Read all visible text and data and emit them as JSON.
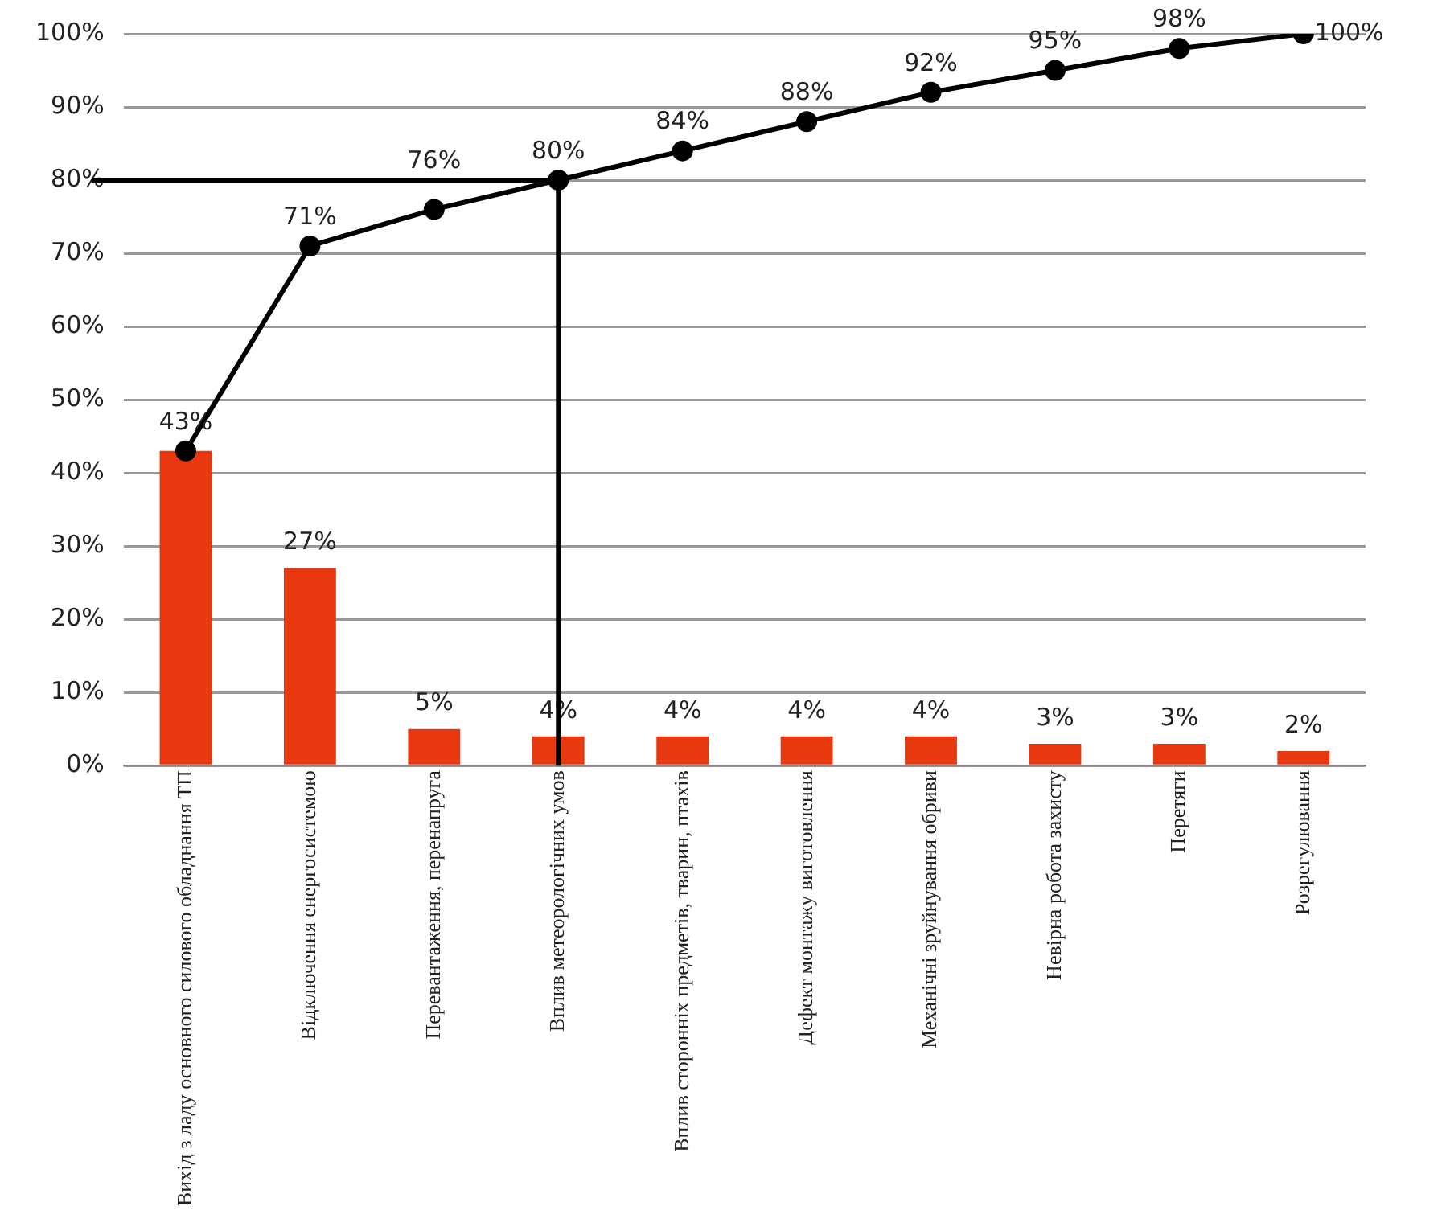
{
  "chart_data": {
    "type": "bar",
    "categories": [
      "Вихід з ладу основного силового обладнання ТП",
      "Відключення енергосистемою",
      "Перевантаження, перенапруга",
      "Вплив метеорологічних умов",
      "Вплив сторонніх предметів, тварин, птахів",
      "Дефект монтажу виготовлення",
      "Механічні зруйнування обриви",
      "Невірна робота захисту",
      "Перетяги",
      "Розрегулювання"
    ],
    "series": [
      {
        "type": "bar",
        "color": "#e8380f",
        "values": [
          43,
          27,
          5,
          4,
          4,
          4,
          4,
          3,
          3,
          2
        ],
        "value_labels": [
          null,
          "27%",
          "5%",
          "4%",
          "4%",
          "4%",
          "4%",
          "3%",
          "3%",
          "2%"
        ]
      },
      {
        "type": "line",
        "color": "#000000",
        "values": [
          43,
          71,
          76,
          80,
          84,
          88,
          92,
          95,
          98,
          100
        ],
        "value_labels": [
          "43%",
          "71%",
          "76%",
          "80%",
          "84%",
          "88%",
          "92%",
          "95%",
          "98%",
          "100%"
        ]
      }
    ],
    "ylim": [
      0,
      100
    ],
    "yticks": [
      {
        "value": 0,
        "label": "0%"
      },
      {
        "value": 10,
        "label": "10%"
      },
      {
        "value": 20,
        "label": "20%"
      },
      {
        "value": 30,
        "label": "30%"
      },
      {
        "value": 40,
        "label": "40%"
      },
      {
        "value": 50,
        "label": "50%"
      },
      {
        "value": 60,
        "label": "60%"
      },
      {
        "value": 70,
        "label": "70%"
      },
      {
        "value": 80,
        "label": "80%"
      },
      {
        "value": 90,
        "label": "90%"
      },
      {
        "value": 100,
        "label": "100%"
      }
    ],
    "ref_lines": [
      {
        "axis": "y",
        "value": 80,
        "color": "#000000"
      },
      {
        "axis": "x",
        "value": "Вплив метеорологічних умов",
        "color": "#000000"
      }
    ],
    "grid": "y",
    "legend": false,
    "marker": "circle",
    "line_style": "solid"
  }
}
